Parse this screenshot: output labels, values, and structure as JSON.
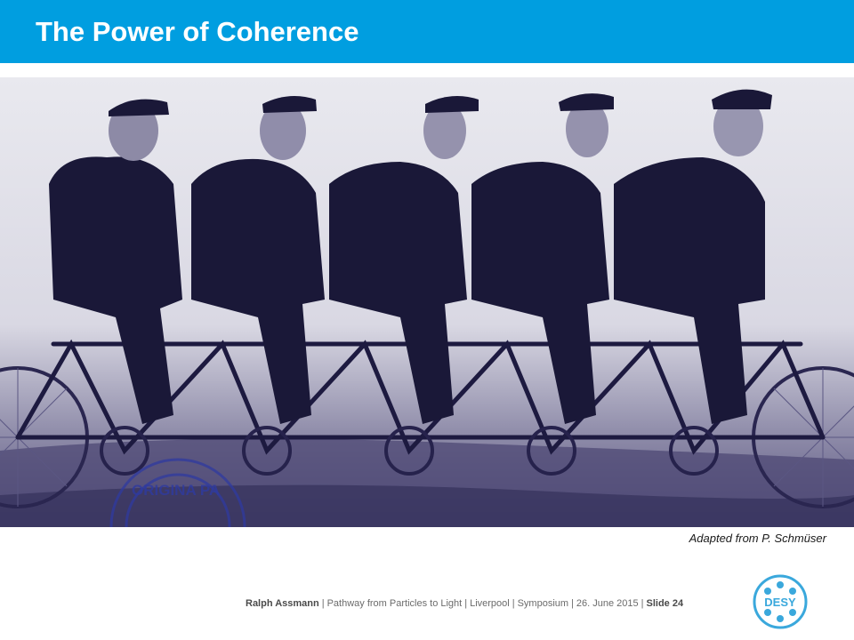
{
  "slide": {
    "title": "The Power of Coherence",
    "caption": "Adapted from P. Schmüser",
    "photo_stamp_text": "ORIGINA PA",
    "footer": {
      "author": "Ralph Assmann",
      "talk": "Pathway from Particles to Light",
      "location": "Liverpool",
      "event": "Symposium",
      "date": "26. June 2015",
      "slide_label": "Slide 24",
      "separator": "|"
    },
    "logo_text": "DESY"
  },
  "colors": {
    "title_bar": "#009ee0",
    "title_text": "#ffffff",
    "photo_tint": "#3a3570",
    "logo": "#3aa8dc"
  },
  "icons": {
    "logo": "desy-logo-icon"
  }
}
